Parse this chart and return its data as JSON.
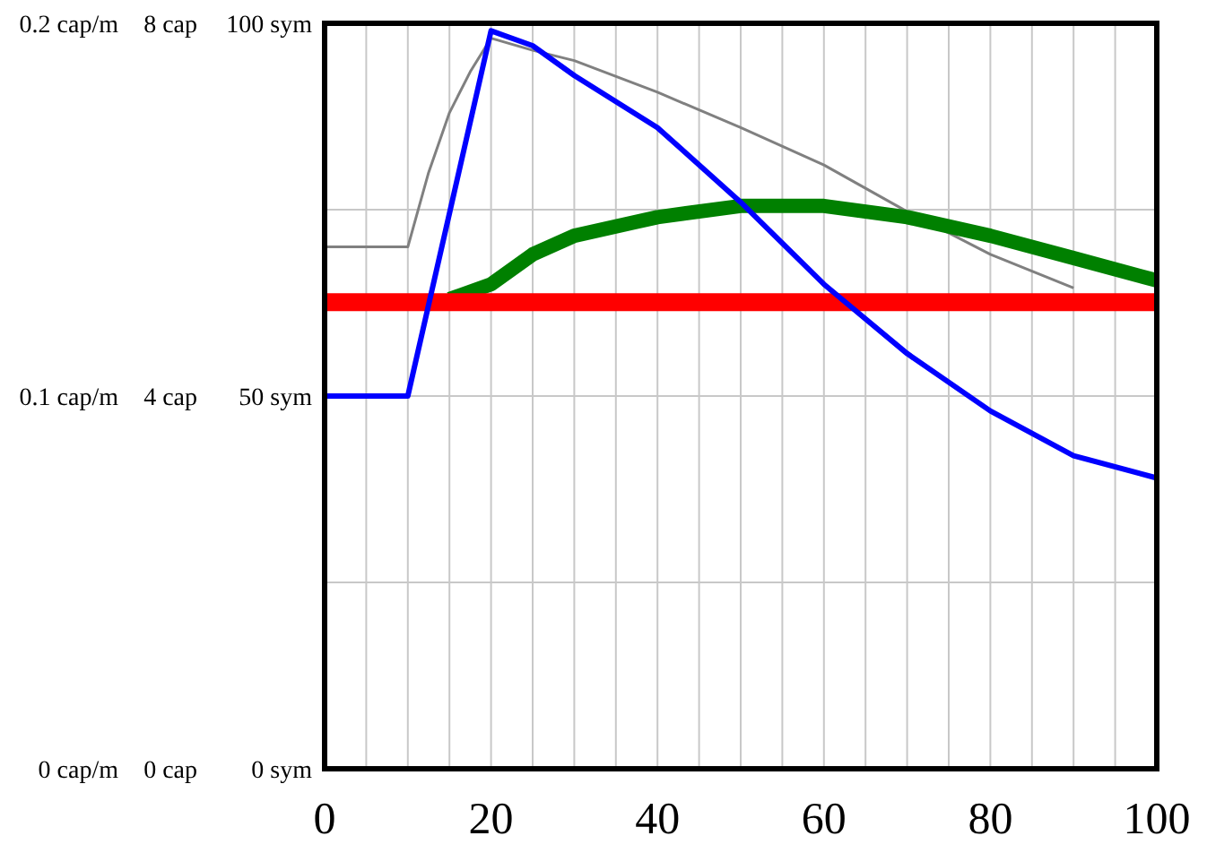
{
  "chart_data": {
    "type": "line",
    "xlim": [
      0,
      100
    ],
    "xticks": [
      0,
      {
        "value": 5,
        "label": null
      },
      {
        "value": 10,
        "label": null
      },
      {
        "value": 15,
        "label": null
      },
      20,
      {
        "value": 25,
        "label": null
      },
      {
        "value": 30,
        "label": null
      },
      {
        "value": 35,
        "label": null
      },
      40,
      {
        "value": 45,
        "label": null
      },
      {
        "value": 50,
        "label": null
      },
      {
        "value": 55,
        "label": null
      },
      60,
      {
        "value": 65,
        "label": null
      },
      {
        "value": 70,
        "label": null
      },
      {
        "value": 75,
        "label": null
      },
      80,
      {
        "value": 85,
        "label": null
      },
      {
        "value": 90,
        "label": null
      },
      {
        "value": 95,
        "label": null
      },
      100
    ],
    "ylim": [
      0,
      100
    ],
    "yticks": [
      {
        "value": 0,
        "label": "0 sym"
      },
      {
        "value": 25,
        "label": null
      },
      {
        "value": 50,
        "label": "50 sym"
      },
      {
        "value": 75,
        "label": null
      },
      {
        "value": 100,
        "label": "100 sym"
      }
    ],
    "y2lim": [
      0,
      8
    ],
    "y2ticks": [
      {
        "value": 0,
        "label": "0 cap"
      },
      {
        "value": 4,
        "label": "4 cap"
      },
      {
        "value": 8,
        "label": "8 cap"
      }
    ],
    "y3lim": [
      0,
      0.2
    ],
    "y3ticks": [
      {
        "value": 0,
        "label": "0 cap/m"
      },
      {
        "value": 0.1,
        "label": "0.1 cap/m"
      },
      {
        "value": 0.2,
        "label": "0.2 cap/m"
      }
    ],
    "grid": true,
    "marker": "none",
    "line_style": "solid",
    "series": [
      {
        "color": "#808080",
        "axis": "y2",
        "x": [
          0,
          10,
          12.5,
          15,
          17.5,
          20,
          25,
          30,
          40,
          50,
          60,
          70,
          80,
          90
        ],
        "values": [
          5.6,
          5.6,
          6.4,
          7.04,
          7.48,
          7.84,
          7.71,
          7.6,
          7.26,
          6.88,
          6.48,
          5.98,
          5.52,
          5.16
        ]
      },
      {
        "color": "#008000",
        "axis": "y3",
        "x": [
          15,
          20,
          25,
          30,
          40,
          50,
          60,
          70,
          80,
          90,
          100
        ],
        "values": [
          0.126,
          0.13,
          0.138,
          0.143,
          0.148,
          0.151,
          0.151,
          0.148,
          0.143,
          0.137,
          0.131
        ]
      },
      {
        "color": "#ff0000",
        "axis": "y",
        "x": [
          0,
          100
        ],
        "values": [
          62.6,
          62.6
        ]
      },
      {
        "color": "#0000ff",
        "axis": "y",
        "x": [
          0,
          10,
          20,
          25,
          30,
          40,
          50,
          60,
          70,
          80,
          90,
          100
        ],
        "values": [
          50,
          50,
          99,
          97,
          93,
          86,
          76,
          65,
          55.7,
          48,
          42,
          39
        ]
      }
    ]
  }
}
